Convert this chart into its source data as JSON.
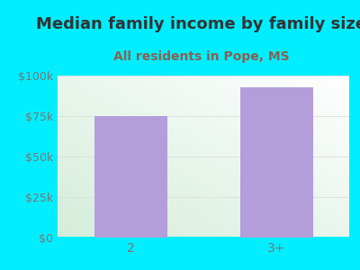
{
  "title": "Median family income by family size",
  "subtitle": "All residents in Pope, MS",
  "categories": [
    "2",
    "3+"
  ],
  "values": [
    75000,
    93000
  ],
  "bar_color": "#b39ddb",
  "background_color": "#00eeff",
  "plot_bg_left": "#d4edda",
  "plot_bg_right": "#f8fffa",
  "title_color": "#333333",
  "subtitle_color": "#8b6050",
  "tick_label_color": "#777777",
  "grid_color": "#dddddd",
  "ylim": [
    0,
    100000
  ],
  "yticks": [
    0,
    25000,
    50000,
    75000,
    100000
  ],
  "ytick_labels": [
    "$0",
    "$25k",
    "$50k",
    "$75k",
    "$100k"
  ],
  "title_fontsize": 13,
  "subtitle_fontsize": 10,
  "tick_fontsize": 9,
  "bar_width": 0.5,
  "xlim": [
    -0.5,
    1.5
  ]
}
